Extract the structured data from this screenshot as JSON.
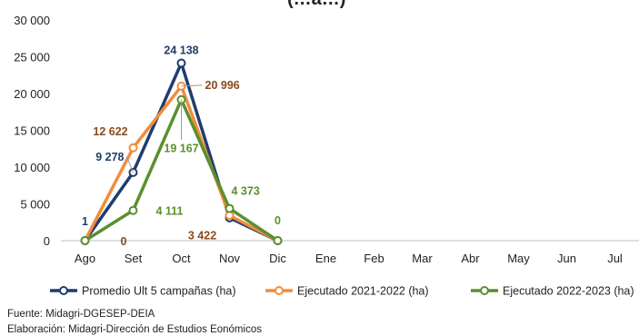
{
  "page": {
    "title_fragment": "(…a…)",
    "source": "Fuente: Midagri-DGESEP-DEIA",
    "credit": "Elaboración: Midagri-Dirección de Estudios Eonómicos"
  },
  "chart_data": {
    "type": "line",
    "title": "",
    "xlabel": "",
    "ylabel": "",
    "ylim": [
      0,
      30000
    ],
    "yticks": [
      0,
      5000,
      10000,
      15000,
      20000,
      25000,
      30000
    ],
    "ytick_labels": [
      "0",
      "5 000",
      "10 000",
      "15 000",
      "20 000",
      "25 000",
      "30 000"
    ],
    "categories": [
      "Ago",
      "Set",
      "Oct",
      "Nov",
      "Dic",
      "Ene",
      "Feb",
      "Mar",
      "Abr",
      "May",
      "Jun",
      "Jul"
    ],
    "grid": false,
    "legend_position": "bottom",
    "series": [
      {
        "name": "Promedio Ult 5 campañas (ha)",
        "color": "#1f3d6e",
        "values": [
          1,
          9278,
          24138,
          3100,
          0,
          null,
          null,
          null,
          null,
          null,
          null,
          null
        ],
        "labels": [
          {
            "index": 0,
            "text": "1"
          },
          {
            "index": 1,
            "text": "9 278"
          },
          {
            "index": 2,
            "text": "24 138"
          }
        ]
      },
      {
        "name": "Ejecutado 2021-2022 (ha)",
        "color": "#f28c3c",
        "label_color": "#8a4a1c",
        "values": [
          0,
          12622,
          20996,
          3422,
          0,
          null,
          null,
          null,
          null,
          null,
          null,
          null
        ],
        "labels": [
          {
            "index": 0,
            "text": "0"
          },
          {
            "index": 1,
            "text": "12 622"
          },
          {
            "index": 2,
            "text": "20 996"
          },
          {
            "index": 3,
            "text": "3 422"
          }
        ]
      },
      {
        "name": "Ejecutado 2022-2023 (ha)",
        "color": "#5a8f2e",
        "values": [
          0,
          4111,
          19167,
          4373,
          0,
          null,
          null,
          null,
          null,
          null,
          null,
          null
        ],
        "labels": [
          {
            "index": 1,
            "text": "4 111"
          },
          {
            "index": 2,
            "text": "19 167"
          },
          {
            "index": 3,
            "text": "4 373"
          },
          {
            "index": 4,
            "text": "0"
          }
        ]
      }
    ]
  }
}
